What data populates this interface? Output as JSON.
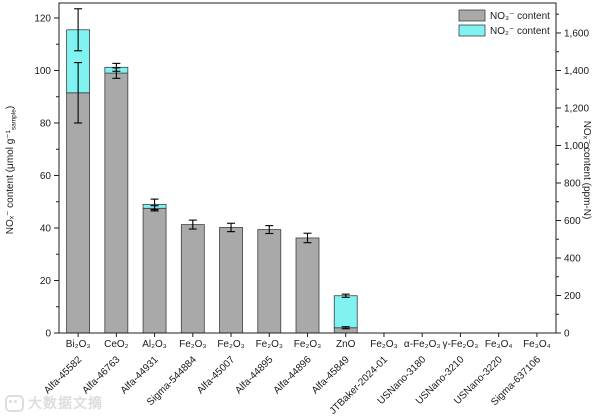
{
  "figure": {
    "watermark": {
      "text": "大数据文摘"
    }
  },
  "chart_data": {
    "type": "bar",
    "stacked": true,
    "title": "",
    "grid": false,
    "legend_position": "top-right-inside",
    "categories": [
      {
        "formula": "Bi₂O₃",
        "sample_id": "Alfa-45582"
      },
      {
        "formula": "CeO₂",
        "sample_id": "Alfa-46763"
      },
      {
        "formula": "Al₂O₃",
        "sample_id": "Alfa-44931"
      },
      {
        "formula": "Fe₂O₃",
        "sample_id": "Sigma-544884"
      },
      {
        "formula": "Fe₂O₃",
        "sample_id": "Alfa-45007"
      },
      {
        "formula": "Fe₂O₃",
        "sample_id": "Alfa-44895"
      },
      {
        "formula": "Fe₂O₃",
        "sample_id": "Alfa-44896"
      },
      {
        "formula": "ZnO",
        "sample_id": "Alfa-45849"
      },
      {
        "formula": "Fe₂O₃",
        "sample_id": "JTBaker-2024-01"
      },
      {
        "formula": "α-Fe₂O₃",
        "sample_id": "USNano-3180"
      },
      {
        "formula": "γ-Fe₂O₃",
        "sample_id": "USNano-3210"
      },
      {
        "formula": "Fe₃O₄",
        "sample_id": "USNano-3220"
      },
      {
        "formula": "Fe₃O₄",
        "sample_id": "Sigma-637106"
      }
    ],
    "series": [
      {
        "name": "NO₃⁻ content",
        "color": "#a9a9a9",
        "stroke": "#3f3f3f",
        "values": [
          91.5,
          99.0,
          47.5,
          41.3,
          40.2,
          39.4,
          36.2,
          2.0,
          0,
          0,
          0,
          0,
          0
        ]
      },
      {
        "name": "NO₂⁻ content",
        "color": "#80f2f0",
        "stroke": "#3f3f3f",
        "values": [
          24.0,
          2.2,
          1.5,
          0,
          0,
          0,
          0,
          12.2,
          0,
          0,
          0,
          0,
          0
        ]
      }
    ],
    "error_bars": {
      "no3": [
        11.5,
        2.0,
        1.0,
        0,
        0,
        0,
        0,
        0.4,
        0,
        0,
        0,
        0,
        0
      ],
      "total": [
        8.0,
        1.5,
        2.0,
        1.7,
        1.6,
        1.5,
        1.8,
        0.6,
        0,
        0,
        0,
        0,
        0
      ]
    },
    "axes": {
      "left": {
        "label_main": "NOₓ⁻ content (μmol g⁻¹",
        "label_sub": "sample",
        "label_close": ")",
        "range": [
          0,
          125.7
        ],
        "major_ticks": [
          {
            "v": 0,
            "label": "0"
          },
          {
            "v": 20,
            "label": "20"
          },
          {
            "v": 40,
            "label": "40"
          },
          {
            "v": 60,
            "label": "60"
          },
          {
            "v": 80,
            "label": "80"
          },
          {
            "v": 100,
            "label": "100"
          },
          {
            "v": 120,
            "label": "120"
          }
        ],
        "minor_step": 10
      },
      "right": {
        "label": "NOₓ⁻ content (ppm-N)",
        "ppm_per_left_unit": 14,
        "major_ticks": [
          {
            "v": 0,
            "label": "0"
          },
          {
            "v": 200,
            "label": "200"
          },
          {
            "v": 400,
            "label": "400"
          },
          {
            "v": 600,
            "label": "600"
          },
          {
            "v": 800,
            "label": "800"
          },
          {
            "v": 1000,
            "label": "1,000"
          },
          {
            "v": 1200,
            "label": "1,200"
          },
          {
            "v": 1400,
            "label": "1,400"
          },
          {
            "v": 1600,
            "label": "1,600"
          }
        ],
        "minor_step": 100
      }
    },
    "colors": {
      "frame": "#1f1f1f",
      "error_bar": "#000000",
      "background": "#ffffff"
    }
  }
}
